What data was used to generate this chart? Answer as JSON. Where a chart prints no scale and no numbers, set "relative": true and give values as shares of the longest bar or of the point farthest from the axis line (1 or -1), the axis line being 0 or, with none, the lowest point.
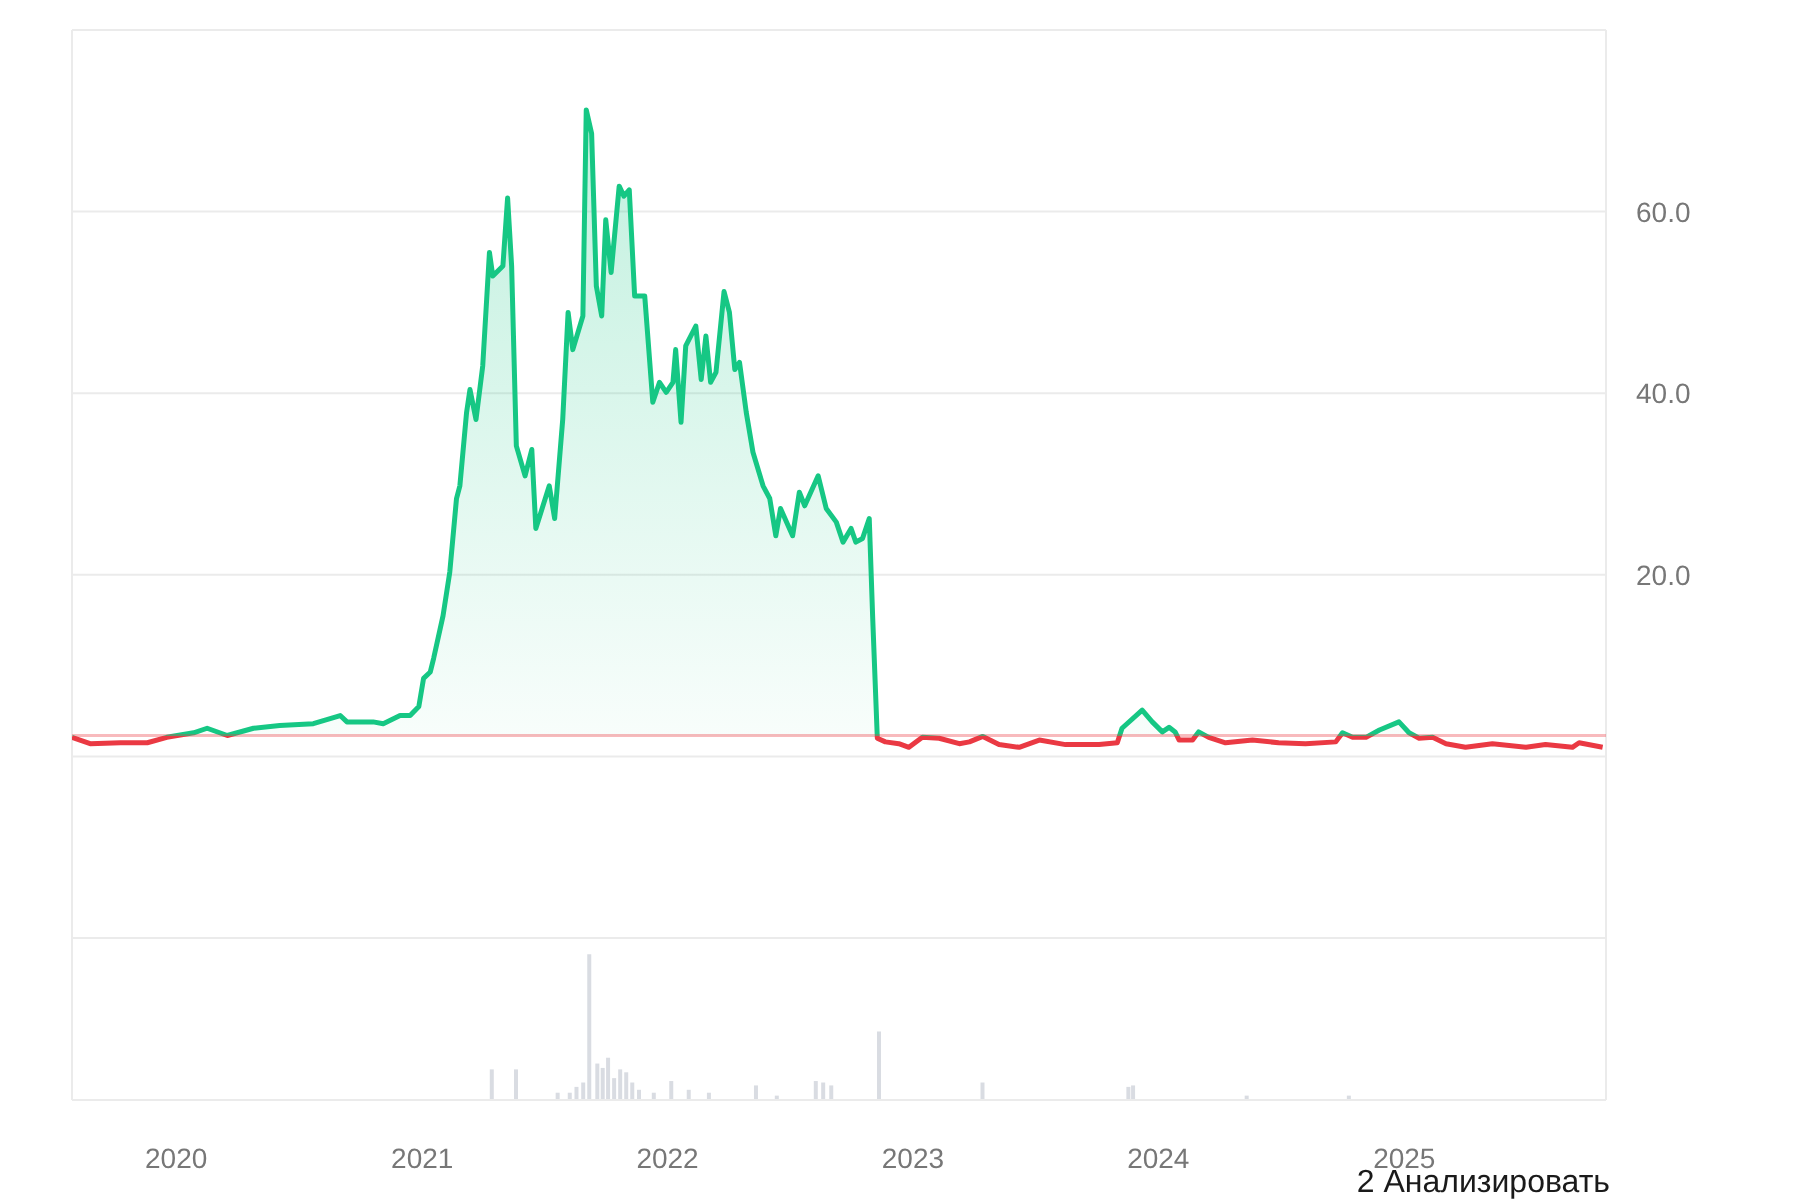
{
  "chart_data": [
    {
      "type": "area",
      "xlim": [
        "2019-07-30",
        "2025-10-28"
      ],
      "ylim": [
        -20,
        80
      ],
      "yticks": [
        {
          "value": -20,
          "label": null
        },
        {
          "value": 0,
          "label": null
        },
        {
          "value": 20,
          "label": "20.0"
        },
        {
          "value": 40,
          "label": "40.0"
        },
        {
          "value": 60,
          "label": "60.0"
        },
        {
          "value": 80,
          "label": null
        }
      ],
      "grid": "y",
      "tick_labels": "y",
      "x": [
        "2019-07-30",
        "2019-08-26",
        "2019-10-10",
        "2019-11-19",
        "2019-12-18",
        "2020-01-27",
        "2020-02-16",
        "2020-03-17",
        "2020-04-25",
        "2020-06-03",
        "2020-07-23",
        "2020-09-01",
        "2020-09-11",
        "2020-10-20",
        "2020-11-04",
        "2020-11-29",
        "2020-12-14",
        "2020-12-27",
        "2021-01-03",
        "2021-01-13",
        "2021-01-18",
        "2021-02-01",
        "2021-02-11",
        "2021-02-21",
        "2021-02-26",
        "2021-03-08",
        "2021-03-13",
        "2021-03-22",
        "2021-04-01",
        "2021-04-11",
        "2021-04-16",
        "2021-05-01",
        "2021-05-08",
        "2021-05-14",
        "2021-05-21",
        "2021-06-03",
        "2021-06-13",
        "2021-06-19",
        "2021-07-09",
        "2021-07-17",
        "2021-07-29",
        "2021-08-06",
        "2021-08-13",
        "2021-08-28",
        "2021-09-02",
        "2021-09-10",
        "2021-09-17",
        "2021-09-25",
        "2021-10-01",
        "2021-10-09",
        "2021-10-21",
        "2021-10-28",
        "2021-11-05",
        "2021-11-13",
        "2021-11-28",
        "2021-12-10",
        "2021-12-20",
        "2021-12-30",
        "2022-01-09",
        "2022-01-13",
        "2022-01-21",
        "2022-01-28",
        "2022-02-12",
        "2022-02-20",
        "2022-02-27",
        "2022-03-06",
        "2022-03-14",
        "2022-03-26",
        "2022-04-03",
        "2022-04-11",
        "2022-04-18",
        "2022-04-28",
        "2022-05-08",
        "2022-05-23",
        "2022-06-02",
        "2022-06-11",
        "2022-06-18",
        "2022-07-06",
        "2022-07-16",
        "2022-07-24",
        "2022-08-13",
        "2022-08-25",
        "2022-09-09",
        "2022-09-19",
        "2022-10-01",
        "2022-10-08",
        "2022-10-18",
        "2022-10-28",
        "2022-11-02",
        "2022-11-09",
        "2022-11-21",
        "2022-12-11",
        "2022-12-26",
        "2023-01-15",
        "2023-02-09",
        "2023-03-11",
        "2023-03-26",
        "2023-04-15",
        "2023-05-09",
        "2023-06-08",
        "2023-07-08",
        "2023-08-16",
        "2023-10-05",
        "2023-11-01",
        "2023-11-08",
        "2023-12-08",
        "2023-12-23",
        "2024-01-07",
        "2024-01-17",
        "2024-01-26",
        "2024-02-01",
        "2024-02-21",
        "2024-03-01",
        "2024-03-16",
        "2024-04-10",
        "2024-05-20",
        "2024-06-28",
        "2024-08-07",
        "2024-09-21",
        "2024-10-01",
        "2024-10-16",
        "2024-11-05",
        "2024-11-25",
        "2024-12-24",
        "2025-01-08",
        "2025-01-23",
        "2025-02-12",
        "2025-03-04",
        "2025-04-02",
        "2025-05-12",
        "2025-07-01",
        "2025-07-30",
        "2025-09-08",
        "2025-09-18",
        "2025-10-23"
      ],
      "series": [
        {
          "color": "#16c784",
          "values": [
            2.1,
            1.4,
            1.5,
            1.5,
            2.1,
            2.6,
            3.1,
            2.3,
            3.1,
            3.4,
            3.6,
            4.5,
            3.8,
            3.8,
            3.6,
            4.5,
            4.5,
            5.5,
            8.6,
            9.3,
            10.8,
            15.5,
            20.3,
            28.4,
            29.8,
            37.9,
            40.4,
            37.1,
            43.0,
            55.5,
            52.9,
            54.0,
            61.5,
            54.0,
            34.2,
            30.9,
            33.8,
            25.1,
            29.8,
            26.2,
            37.1,
            48.9,
            44.8,
            48.5,
            71.2,
            68.6,
            51.8,
            48.5,
            59.1,
            53.3,
            62.8,
            61.7,
            62.4,
            50.7,
            50.7,
            39.0,
            41.2,
            40.1,
            41.2,
            44.8,
            36.8,
            45.2,
            47.4,
            41.5,
            46.3,
            41.2,
            42.3,
            51.2,
            48.9,
            42.6,
            43.4,
            37.9,
            33.5,
            29.8,
            28.4,
            24.3,
            27.3,
            24.3,
            29.1,
            27.6,
            30.9,
            27.3,
            25.8,
            23.6,
            25.1,
            23.6,
            24.0,
            26.2,
            15.5,
            2.0,
            1.6,
            1.4,
            1.0,
            2.1,
            2.0,
            1.4,
            1.6,
            2.2,
            1.3,
            1.0,
            1.8,
            1.3,
            1.3,
            1.5,
            3.1,
            5.1,
            3.8,
            2.7,
            3.2,
            2.7,
            1.8,
            1.8,
            2.7,
            2.1,
            1.5,
            1.8,
            1.5,
            1.4,
            1.6,
            2.6,
            2.1,
            2.1,
            2.9,
            3.8,
            2.6,
            2.0,
            2.1,
            1.4,
            1.0,
            1.4,
            1.0,
            1.3,
            1.0,
            1.5,
            1.0
          ]
        }
      ],
      "ref_lines": [
        {
          "axis": "y",
          "value": 2.3,
          "color": "#ea3943"
        }
      ]
    },
    {
      "type": "bar",
      "relative": true,
      "color": "#d9dce2",
      "xlim": [
        "2019-07-30",
        "2025-10-28"
      ],
      "xticks": [
        "2020",
        "2021",
        "2022",
        "2023",
        "2024",
        "2025"
      ],
      "tick_labels": "x",
      "x": [
        "2021-04-15",
        "2021-05-21",
        "2021-07-22",
        "2021-08-09",
        "2021-08-19",
        "2021-08-29",
        "2021-09-07",
        "2021-09-19",
        "2021-09-27",
        "2021-10-05",
        "2021-10-14",
        "2021-10-23",
        "2021-11-01",
        "2021-11-10",
        "2021-11-20",
        "2021-12-12",
        "2022-01-07",
        "2022-02-02",
        "2022-03-04",
        "2022-05-13",
        "2022-06-13",
        "2022-08-10",
        "2022-08-21",
        "2022-09-02",
        "2022-11-12",
        "2023-04-15",
        "2023-11-18",
        "2023-11-25",
        "2024-05-12",
        "2024-10-11"
      ],
      "values": [
        0.21,
        0.21,
        0.05,
        0.05,
        0.09,
        0.12,
        1,
        0.25,
        0.22,
        0.29,
        0.15,
        0.21,
        0.19,
        0.12,
        0.07,
        0.05,
        0.13,
        0.07,
        0.05,
        0.1,
        0.03,
        0.13,
        0.12,
        0.1,
        0.47,
        0.12,
        0.09,
        0.1,
        0.03,
        0.03
      ],
      "annotations": [
        "2 Анализировать"
      ]
    }
  ]
}
